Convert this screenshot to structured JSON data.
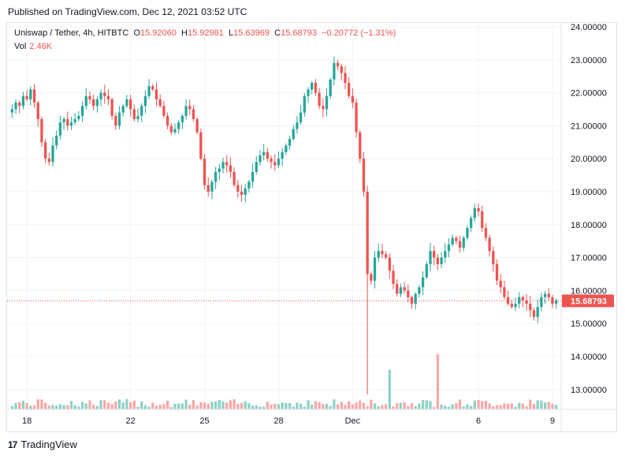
{
  "header": {
    "published": "Published on TradingView.com, Dec 12, 2021 03:52 UTC"
  },
  "legend": {
    "symbol": "Uniswap / Tether, 4h, HITBTC",
    "o_label": "O",
    "o": "15.92060",
    "h_label": "H",
    "h": "15.92981",
    "l_label": "L",
    "l": "15.63969",
    "c_label": "C",
    "c": "15.68793",
    "change": "−0.20772 (−1.31%)",
    "vol_label": "Vol",
    "vol": "2.46K"
  },
  "footer": {
    "logo": "17",
    "brand": "TradingView"
  },
  "colors": {
    "up": "#26a69a",
    "down": "#ef5350",
    "up_vol": "#8ed1c6",
    "down_vol": "#f7a9a7",
    "grid": "#f0f3fa"
  },
  "chart_data": {
    "type": "candlestick",
    "timeframe": "4h",
    "ylim": [
      12.4,
      24.2
    ],
    "yticks": [
      "24.00000",
      "23.00000",
      "22.00000",
      "21.00000",
      "20.00000",
      "19.00000",
      "18.00000",
      "17.00000",
      "16.00000",
      "15.00000",
      "14.00000",
      "13.00000"
    ],
    "xtick_labels": [
      {
        "label": "18",
        "index": 4
      },
      {
        "label": "22",
        "index": 32
      },
      {
        "label": "25",
        "index": 52
      },
      {
        "label": "28",
        "index": 72
      },
      {
        "label": "Dec",
        "index": 92
      },
      {
        "label": "6",
        "index": 126
      },
      {
        "label": "9",
        "index": 146
      }
    ],
    "last_price": "15.68793",
    "volume_spikes": [
      {
        "index": 102,
        "type": "up",
        "relative": 1.0
      },
      {
        "index": 115,
        "type": "down",
        "relative": 2.1
      }
    ],
    "ohlc_path": [
      21.5,
      21.7,
      21.6,
      21.9,
      21.8,
      22.1,
      21.7,
      21.2,
      20.5,
      20.0,
      19.9,
      20.4,
      20.7,
      21.1,
      21.2,
      21.0,
      21.1,
      21.2,
      21.3,
      21.6,
      21.9,
      21.8,
      21.6,
      21.8,
      22.0,
      21.9,
      21.8,
      21.3,
      21.0,
      21.4,
      21.6,
      21.8,
      21.5,
      21.2,
      21.3,
      21.6,
      21.9,
      22.2,
      22.1,
      21.8,
      21.6,
      21.3,
      21.0,
      20.8,
      20.9,
      21.1,
      21.3,
      21.6,
      21.5,
      21.2,
      20.8,
      20.0,
      19.2,
      19.0,
      19.3,
      19.6,
      19.7,
      19.9,
      19.8,
      19.6,
      19.2,
      19.0,
      18.9,
      19.1,
      19.3,
      19.6,
      19.9,
      20.1,
      20.2,
      20.0,
      19.9,
      19.8,
      20.0,
      20.2,
      20.4,
      20.6,
      20.9,
      21.1,
      21.4,
      21.9,
      22.1,
      22.3,
      22.0,
      21.6,
      21.5,
      21.9,
      22.4,
      22.9,
      22.8,
      22.6,
      22.3,
      21.9,
      21.7,
      20.8,
      20.0,
      19.0,
      16.5,
      16.3,
      17.0,
      17.2,
      17.1,
      17.0,
      16.6,
      16.2,
      15.9,
      16.1,
      16.0,
      15.8,
      15.6,
      15.9,
      16.1,
      16.4,
      16.8,
      17.2,
      17.0,
      16.8,
      17.0,
      17.2,
      17.4,
      17.6,
      17.5,
      17.3,
      17.6,
      17.9,
      18.2,
      18.5,
      18.4,
      17.9,
      17.6,
      17.2,
      16.8,
      16.3,
      16.1,
      15.8,
      15.6,
      15.5,
      15.6,
      15.8,
      15.7,
      15.6,
      15.4,
      15.2,
      15.5,
      15.8,
      15.9,
      15.8,
      15.6,
      15.7
    ]
  }
}
